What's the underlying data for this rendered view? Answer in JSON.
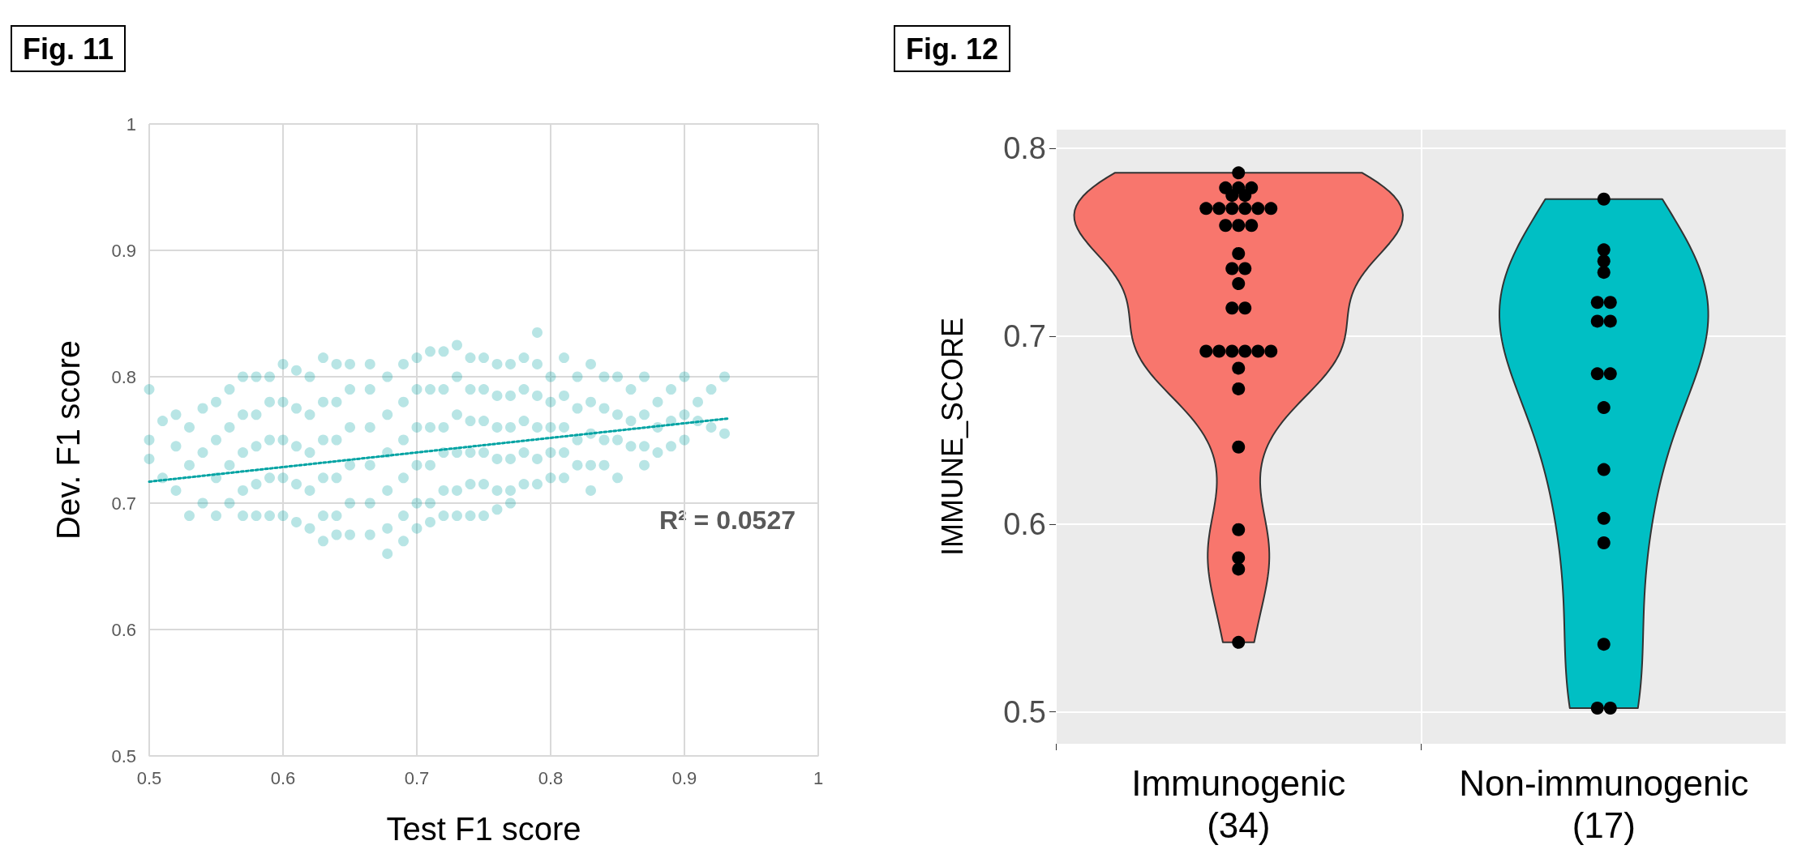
{
  "chart_data": [
    {
      "type": "scatter",
      "title": "Fig. 11",
      "xlabel": "Test F1 score",
      "ylabel": "Dev. F1 score",
      "xlim": [
        0.5,
        1
      ],
      "ylim": [
        0.5,
        1
      ],
      "xticks": [
        0.5,
        0.6,
        0.7,
        0.8,
        0.9,
        1
      ],
      "yticks": [
        0.5,
        0.6,
        0.7,
        0.8,
        0.9,
        1
      ],
      "grid": true,
      "marker": "circle",
      "annotations": [
        "R² = 0.0527"
      ],
      "series": [
        {
          "color": "#00a3a3",
          "x": [
            0.5,
            0.5,
            0.5,
            0.51,
            0.51,
            0.52,
            0.52,
            0.52,
            0.53,
            0.53,
            0.53,
            0.54,
            0.54,
            0.54,
            0.55,
            0.55,
            0.55,
            0.55,
            0.56,
            0.56,
            0.56,
            0.56,
            0.57,
            0.57,
            0.57,
            0.57,
            0.57,
            0.58,
            0.58,
            0.58,
            0.58,
            0.58,
            0.59,
            0.59,
            0.59,
            0.59,
            0.59,
            0.6,
            0.6,
            0.6,
            0.6,
            0.6,
            0.61,
            0.61,
            0.61,
            0.61,
            0.61,
            0.62,
            0.62,
            0.62,
            0.62,
            0.62,
            0.63,
            0.63,
            0.63,
            0.63,
            0.63,
            0.63,
            0.64,
            0.64,
            0.64,
            0.64,
            0.64,
            0.64,
            0.65,
            0.65,
            0.65,
            0.65,
            0.65,
            0.65,
            0.665,
            0.665,
            0.665,
            0.665,
            0.665,
            0.665,
            0.678,
            0.678,
            0.678,
            0.678,
            0.678,
            0.678,
            0.69,
            0.69,
            0.69,
            0.69,
            0.69,
            0.69,
            0.7,
            0.7,
            0.7,
            0.7,
            0.7,
            0.7,
            0.71,
            0.71,
            0.71,
            0.71,
            0.71,
            0.71,
            0.72,
            0.72,
            0.72,
            0.72,
            0.72,
            0.72,
            0.73,
            0.73,
            0.73,
            0.73,
            0.73,
            0.73,
            0.74,
            0.74,
            0.74,
            0.74,
            0.74,
            0.74,
            0.75,
            0.75,
            0.75,
            0.75,
            0.75,
            0.75,
            0.76,
            0.76,
            0.76,
            0.76,
            0.76,
            0.76,
            0.77,
            0.77,
            0.77,
            0.77,
            0.77,
            0.77,
            0.78,
            0.78,
            0.78,
            0.78,
            0.78,
            0.79,
            0.79,
            0.79,
            0.79,
            0.79,
            0.79,
            0.8,
            0.8,
            0.8,
            0.8,
            0.8,
            0.81,
            0.81,
            0.81,
            0.81,
            0.81,
            0.82,
            0.82,
            0.82,
            0.82,
            0.83,
            0.83,
            0.83,
            0.83,
            0.83,
            0.84,
            0.84,
            0.84,
            0.84,
            0.85,
            0.85,
            0.85,
            0.85,
            0.86,
            0.86,
            0.86,
            0.87,
            0.87,
            0.87,
            0.87,
            0.88,
            0.88,
            0.88,
            0.89,
            0.89,
            0.89,
            0.9,
            0.9,
            0.9,
            0.91,
            0.91,
            0.92,
            0.92,
            0.93,
            0.93
          ],
          "values": [
            0.79,
            0.75,
            0.735,
            0.765,
            0.72,
            0.77,
            0.745,
            0.71,
            0.76,
            0.73,
            0.69,
            0.775,
            0.74,
            0.7,
            0.78,
            0.75,
            0.72,
            0.69,
            0.79,
            0.76,
            0.73,
            0.7,
            0.8,
            0.77,
            0.74,
            0.71,
            0.69,
            0.8,
            0.77,
            0.745,
            0.715,
            0.69,
            0.8,
            0.78,
            0.75,
            0.72,
            0.69,
            0.81,
            0.78,
            0.75,
            0.72,
            0.69,
            0.805,
            0.775,
            0.745,
            0.715,
            0.685,
            0.8,
            0.77,
            0.74,
            0.71,
            0.68,
            0.815,
            0.78,
            0.75,
            0.72,
            0.69,
            0.67,
            0.81,
            0.78,
            0.75,
            0.72,
            0.69,
            0.675,
            0.81,
            0.79,
            0.76,
            0.73,
            0.7,
            0.675,
            0.81,
            0.79,
            0.76,
            0.73,
            0.7,
            0.675,
            0.8,
            0.77,
            0.74,
            0.71,
            0.68,
            0.66,
            0.81,
            0.78,
            0.75,
            0.72,
            0.69,
            0.67,
            0.815,
            0.79,
            0.76,
            0.73,
            0.7,
            0.68,
            0.82,
            0.79,
            0.76,
            0.73,
            0.7,
            0.685,
            0.82,
            0.79,
            0.76,
            0.74,
            0.71,
            0.69,
            0.825,
            0.8,
            0.77,
            0.74,
            0.71,
            0.69,
            0.815,
            0.79,
            0.765,
            0.74,
            0.715,
            0.69,
            0.815,
            0.79,
            0.765,
            0.74,
            0.715,
            0.69,
            0.81,
            0.785,
            0.76,
            0.735,
            0.71,
            0.695,
            0.81,
            0.785,
            0.76,
            0.735,
            0.71,
            0.7,
            0.815,
            0.79,
            0.765,
            0.74,
            0.715,
            0.835,
            0.81,
            0.785,
            0.76,
            0.735,
            0.715,
            0.8,
            0.78,
            0.76,
            0.74,
            0.72,
            0.815,
            0.785,
            0.76,
            0.74,
            0.72,
            0.8,
            0.775,
            0.75,
            0.73,
            0.81,
            0.78,
            0.755,
            0.73,
            0.71,
            0.8,
            0.775,
            0.75,
            0.73,
            0.8,
            0.77,
            0.75,
            0.72,
            0.79,
            0.765,
            0.745,
            0.8,
            0.77,
            0.745,
            0.73,
            0.78,
            0.76,
            0.74,
            0.79,
            0.765,
            0.745,
            0.8,
            0.77,
            0.75,
            0.78,
            0.765,
            0.79,
            0.76,
            0.8,
            0.755
          ]
        },
        {
          "type": "line",
          "color": "#00a3a3",
          "line_style": "dotted",
          "marker": "none",
          "x": [
            0.5,
            0.933
          ],
          "values": [
            0.717,
            0.767
          ]
        }
      ]
    },
    {
      "type": "scatter",
      "title": "Fig. 12",
      "ylabel": "IMMUNE_SCORE",
      "categories": [
        "Immunogenic\n(34)",
        "Non-immunogenic\n(17)"
      ],
      "colors": [
        "#f8766d",
        "#00bfc4"
      ],
      "ylim": [
        0.483,
        0.81
      ],
      "yticks": [
        0.5,
        0.6,
        0.7,
        0.8
      ],
      "grid": true,
      "marker": "circle",
      "tick_labels": "xy",
      "series": [
        {
          "color": "#000000",
          "x": [
            "Immunogenic\n(34)",
            "Immunogenic\n(34)",
            "Immunogenic\n(34)",
            "Immunogenic\n(34)",
            "Immunogenic\n(34)",
            "Immunogenic\n(34)",
            "Immunogenic\n(34)",
            "Immunogenic\n(34)",
            "Immunogenic\n(34)",
            "Immunogenic\n(34)",
            "Immunogenic\n(34)",
            "Immunogenic\n(34)",
            "Immunogenic\n(34)",
            "Immunogenic\n(34)",
            "Immunogenic\n(34)",
            "Immunogenic\n(34)",
            "Immunogenic\n(34)",
            "Immunogenic\n(34)",
            "Immunogenic\n(34)",
            "Immunogenic\n(34)",
            "Immunogenic\n(34)",
            "Immunogenic\n(34)",
            "Immunogenic\n(34)",
            "Immunogenic\n(34)",
            "Immunogenic\n(34)",
            "Immunogenic\n(34)",
            "Immunogenic\n(34)",
            "Immunogenic\n(34)",
            "Immunogenic\n(34)",
            "Immunogenic\n(34)",
            "Immunogenic\n(34)",
            "Immunogenic\n(34)",
            "Immunogenic\n(34)",
            "Immunogenic\n(34)",
            "Non-immunogenic\n(17)",
            "Non-immunogenic\n(17)",
            "Non-immunogenic\n(17)",
            "Non-immunogenic\n(17)",
            "Non-immunogenic\n(17)",
            "Non-immunogenic\n(17)",
            "Non-immunogenic\n(17)",
            "Non-immunogenic\n(17)",
            "Non-immunogenic\n(17)",
            "Non-immunogenic\n(17)",
            "Non-immunogenic\n(17)",
            "Non-immunogenic\n(17)",
            "Non-immunogenic\n(17)",
            "Non-immunogenic\n(17)",
            "Non-immunogenic\n(17)",
            "Non-immunogenic\n(17)",
            "Non-immunogenic\n(17)"
          ],
          "values": [
            0.787,
            0.779,
            0.779,
            0.779,
            0.775,
            0.775,
            0.768,
            0.768,
            0.768,
            0.768,
            0.768,
            0.768,
            0.759,
            0.759,
            0.759,
            0.744,
            0.736,
            0.736,
            0.728,
            0.715,
            0.715,
            0.692,
            0.692,
            0.692,
            0.692,
            0.692,
            0.692,
            0.683,
            0.672,
            0.641,
            0.597,
            0.582,
            0.576,
            0.537,
            0.773,
            0.746,
            0.74,
            0.734,
            0.718,
            0.718,
            0.708,
            0.708,
            0.68,
            0.68,
            0.662,
            0.629,
            0.603,
            0.59,
            0.536,
            0.502,
            0.502
          ]
        }
      ]
    }
  ]
}
